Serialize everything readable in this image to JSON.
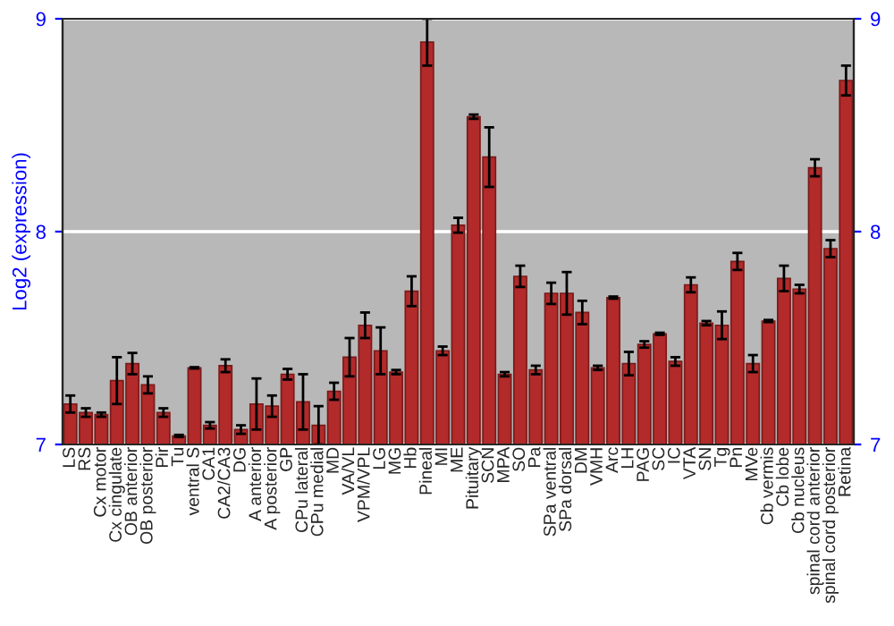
{
  "chart_data": {
    "type": "bar",
    "ylabel": "Log2 (expression)",
    "categories": [
      "LS",
      "RS",
      "Cx motor",
      "Cx cingulate",
      "OB anterior",
      "OB posterior",
      "Pir",
      "Tu",
      "ventral S",
      "CA1",
      "CA2/CA3",
      "DG",
      "A anterior",
      "A posterior",
      "GP",
      "CPu lateral",
      "CPu medial",
      "MD",
      "VA/VL",
      "VPM/VPL",
      "LG",
      "MG",
      "Hb",
      "Pineal",
      "MI",
      "ME",
      "Pituitary",
      "SCN",
      "MPA",
      "SO",
      "Pa",
      "SPa ventral",
      "SPa dorsal",
      "DM",
      "VMH",
      "Arc",
      "LH",
      "PAG",
      "SC",
      "IC",
      "VTA",
      "SN",
      "Tg",
      "Pn",
      "MVe",
      "Cb vermis",
      "Cb lobe",
      "Cb nucleus",
      "spinal cord anterior",
      "spinal cord posterior",
      "Retina"
    ],
    "series": [
      {
        "color": "#b22a2a",
        "values": [
          7.19,
          7.15,
          7.14,
          7.3,
          7.38,
          7.28,
          7.15,
          7.04,
          7.36,
          7.09,
          7.37,
          7.07,
          7.19,
          7.18,
          7.33,
          7.2,
          7.09,
          7.25,
          7.41,
          7.56,
          7.44,
          7.34,
          7.72,
          8.89,
          7.44,
          8.03,
          8.54,
          8.35,
          7.33,
          7.79,
          7.35,
          7.71,
          7.71,
          7.62,
          7.36,
          7.69,
          7.38,
          7.47,
          7.52,
          7.39,
          7.75,
          7.57,
          7.56,
          7.86,
          7.38,
          7.58,
          7.78,
          7.73,
          8.3,
          7.92,
          8.71
        ],
        "errors": [
          0.04,
          0.02,
          0.01,
          0.11,
          0.05,
          0.04,
          0.02,
          0.005,
          0.003,
          0.015,
          0.03,
          0.02,
          0.12,
          0.05,
          0.025,
          0.13,
          0.09,
          0.04,
          0.09,
          0.06,
          0.11,
          0.01,
          0.07,
          0.11,
          0.02,
          0.035,
          0.01,
          0.14,
          0.01,
          0.05,
          0.02,
          0.05,
          0.1,
          0.055,
          0.01,
          0.005,
          0.055,
          0.015,
          0.005,
          0.02,
          0.035,
          0.01,
          0.065,
          0.04,
          0.04,
          0.005,
          0.06,
          0.02,
          0.04,
          0.04,
          0.07
        ]
      }
    ],
    "ylim": [
      7,
      9
    ],
    "yticks": [
      7,
      8,
      9
    ],
    "y2lim": [
      7,
      9
    ],
    "y2ticks": [
      7,
      8,
      9
    ],
    "grid": "y",
    "legend": false
  }
}
